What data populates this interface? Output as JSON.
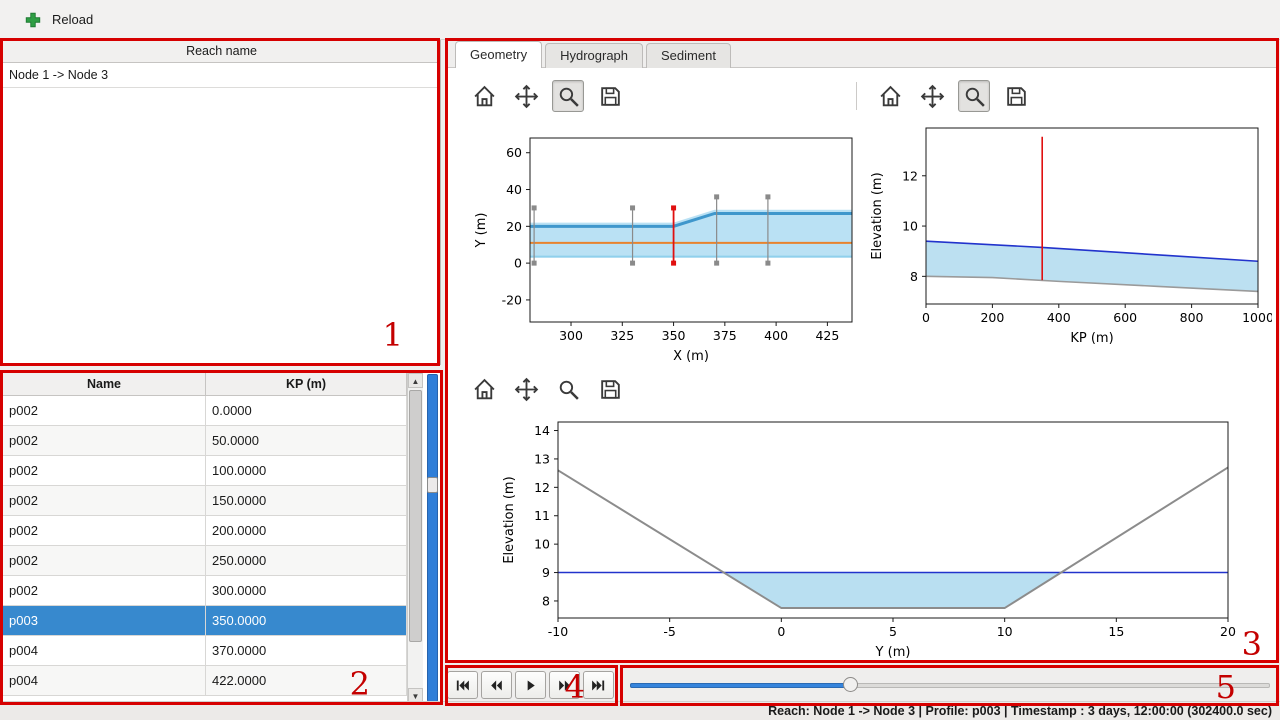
{
  "toolbar": {
    "reload_label": "Reload"
  },
  "reach_panel": {
    "header": "Reach name",
    "items": [
      "Node 1 -> Node 3"
    ]
  },
  "profile_table": {
    "columns": [
      "Name",
      "KP (m)"
    ],
    "rows": [
      [
        "p002",
        "0.0000"
      ],
      [
        "p002",
        "50.0000"
      ],
      [
        "p002",
        "100.0000"
      ],
      [
        "p002",
        "150.0000"
      ],
      [
        "p002",
        "200.0000"
      ],
      [
        "p002",
        "250.0000"
      ],
      [
        "p002",
        "300.0000"
      ],
      [
        "p003",
        "350.0000"
      ],
      [
        "p004",
        "370.0000"
      ],
      [
        "p004",
        "422.0000"
      ]
    ],
    "selected_row": 7
  },
  "tabs": [
    {
      "label": "Geometry",
      "selected": true
    },
    {
      "label": "Hydrograph",
      "selected": false
    },
    {
      "label": "Sediment",
      "selected": false
    }
  ],
  "chart_toolbars": [
    {
      "buttons": [
        "home",
        "pan",
        "zoom",
        "save"
      ],
      "pressed": "zoom"
    },
    {
      "buttons": [
        "home",
        "pan",
        "zoom",
        "save"
      ],
      "pressed": "zoom"
    },
    {
      "buttons": [
        "home",
        "pan",
        "zoom",
        "save"
      ],
      "pressed": null
    }
  ],
  "charts": {
    "plan": {
      "type": "line",
      "xlabel": "X (m)",
      "ylabel": "Y (m)",
      "xlim": [
        280,
        437
      ],
      "ylim": [
        -32,
        68
      ],
      "xticks": [
        300,
        325,
        350,
        375,
        400,
        425
      ],
      "yticks": [
        -20,
        0,
        20,
        40,
        60
      ],
      "series": [
        {
          "type": "fill",
          "points": [
            [
              280,
              3
            ],
            [
              437,
              3
            ],
            [
              437,
              29
            ],
            [
              370,
              29
            ],
            [
              350,
              22
            ],
            [
              280,
              22
            ]
          ],
          "color": "#aedcf2",
          "opacity": 0.85
        },
        {
          "type": "line",
          "points": [
            [
              280,
              3.5
            ],
            [
              437,
              3.5
            ]
          ],
          "color": "#8fd0ec",
          "width": 2
        },
        {
          "type": "line",
          "points": [
            [
              280,
              20
            ],
            [
              350,
              20
            ],
            [
              370,
              27
            ],
            [
              437,
              27
            ]
          ],
          "color": "#3f97cc",
          "width": 3
        },
        {
          "type": "line",
          "points": [
            [
              280,
              11
            ],
            [
              437,
              11
            ]
          ],
          "color": "#e8832e",
          "width": 2
        },
        {
          "type": "vline",
          "x": 282,
          "y0": 0,
          "y1": 30,
          "color": "#8a8a8a",
          "width": 1.2,
          "markers": true
        },
        {
          "type": "vline",
          "x": 330,
          "y0": 0,
          "y1": 30,
          "color": "#8a8a8a",
          "width": 1.2,
          "markers": true
        },
        {
          "type": "vline",
          "x": 371,
          "y0": 0,
          "y1": 36,
          "color": "#8a8a8a",
          "width": 1.2,
          "markers": true
        },
        {
          "type": "vline",
          "x": 396,
          "y0": 0,
          "y1": 36,
          "color": "#8a8a8a",
          "width": 1.2,
          "markers": true
        },
        {
          "type": "vline",
          "x": 350,
          "y0": 0,
          "y1": 30,
          "color": "#e01010",
          "width": 1.8,
          "markers": true
        }
      ]
    },
    "profile": {
      "type": "line",
      "xlabel": "KP (m)",
      "ylabel": "Elevation (m)",
      "xlim": [
        0,
        1000
      ],
      "ylim": [
        6.9,
        13.9
      ],
      "xticks": [
        0,
        200,
        400,
        600,
        800,
        1000
      ],
      "yticks": [
        8,
        10,
        12
      ],
      "series": [
        {
          "type": "fill",
          "points": [
            [
              0,
              9.4
            ],
            [
              350,
              9.15
            ],
            [
              1000,
              8.6
            ],
            [
              1000,
              7.4
            ],
            [
              700,
              7.6
            ],
            [
              400,
              7.8
            ],
            [
              200,
              7.95
            ],
            [
              0,
              8.0
            ]
          ],
          "color": "#b5ddf0",
          "opacity": 0.9
        },
        {
          "type": "line",
          "points": [
            [
              0,
              9.4
            ],
            [
              350,
              9.15
            ],
            [
              1000,
              8.6
            ]
          ],
          "color": "#2233cc",
          "width": 1.6
        },
        {
          "type": "line",
          "points": [
            [
              0,
              8.0
            ],
            [
              200,
              7.95
            ],
            [
              400,
              7.8
            ],
            [
              700,
              7.6
            ],
            [
              1000,
              7.4
            ]
          ],
          "color": "#9a9a9a",
          "width": 1.6
        },
        {
          "type": "vline",
          "x": 350,
          "y0": 7.85,
          "y1": 13.55,
          "color": "#e01010",
          "width": 1.6,
          "markers": false
        }
      ]
    },
    "cross_section": {
      "type": "line",
      "xlabel": "Y (m)",
      "ylabel": "Elevation (m)",
      "xlim": [
        -10,
        20
      ],
      "ylim": [
        7.4,
        14.3
      ],
      "xticks": [
        -10,
        -5,
        0,
        5,
        10,
        15,
        20
      ],
      "yticks": [
        8,
        9,
        10,
        11,
        12,
        13,
        14
      ],
      "water_level": 9,
      "series": [
        {
          "type": "fill",
          "points": [
            [
              -2.58,
              9
            ],
            [
              0,
              7.75
            ],
            [
              10,
              7.75
            ],
            [
              12.53,
              9
            ]
          ],
          "color": "#b5ddf0",
          "opacity": 0.95
        },
        {
          "type": "line",
          "points": [
            [
              -10,
              9
            ],
            [
              20,
              9
            ]
          ],
          "color": "#2233cc",
          "width": 1.5
        },
        {
          "type": "line",
          "points": [
            [
              -10,
              12.6
            ],
            [
              0,
              7.75
            ],
            [
              10,
              7.75
            ],
            [
              20,
              12.7
            ]
          ],
          "color": "#8c8c8c",
          "width": 2
        }
      ]
    }
  },
  "playback": {
    "buttons": [
      "skip-start",
      "rewind",
      "play",
      "fast-forward",
      "skip-end"
    ]
  },
  "time_slider": {
    "value_fraction": 0.345
  },
  "status_bar": {
    "text": "Reach: Node 1 -> Node 3 | Profile: p003 | Timestamp : 3 days, 12:00:00 (302400.0 sec)"
  },
  "annotations": [
    {
      "label": "1"
    },
    {
      "label": "2"
    },
    {
      "label": "3"
    },
    {
      "label": "4"
    },
    {
      "label": "5"
    }
  ],
  "colors": {
    "selection": "#3789ce",
    "annotation": "#d60000",
    "water_fill": "#b5ddf0",
    "water_line": "#2233cc",
    "bed_line": "#8c8c8c",
    "marker_red": "#e01010",
    "bank_orange": "#e8832e",
    "accent_blue": "#3584dc"
  }
}
